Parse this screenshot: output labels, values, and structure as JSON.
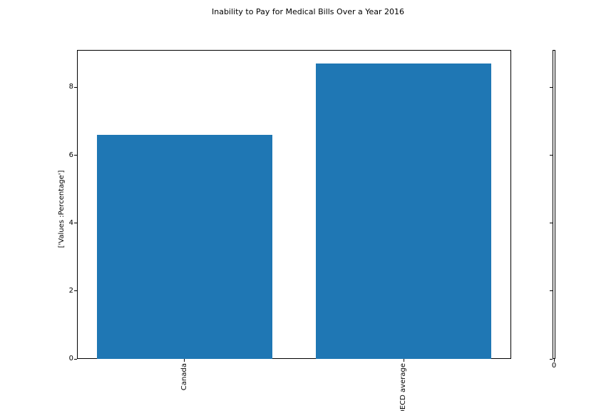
{
  "chart_data": {
    "type": "bar",
    "title": "Inability to Pay for Medical Bills Over a Year 2016",
    "categories": [
      "Canada",
      "OECD average"
    ],
    "values": [
      6.6,
      8.7
    ],
    "xlabel": "",
    "ylabel": "['Values :Percentage']",
    "yticks": [
      0,
      2,
      4,
      6,
      8
    ],
    "ylim": [
      0,
      9.1
    ],
    "bar_color": "#1f77b4",
    "axis_color": "#000000",
    "grid": false,
    "legend": false,
    "x_tick_rotation": 90,
    "secondary_axis": {
      "x_tick_label": "0",
      "has_unlabeled_yticks": true
    }
  }
}
